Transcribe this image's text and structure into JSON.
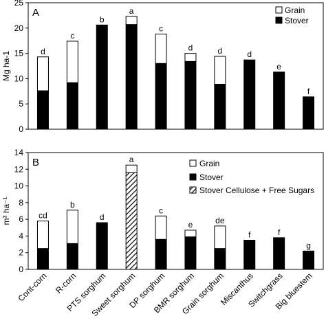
{
  "chart_data": [
    {
      "panel_label": "A",
      "type": "bar",
      "stacked": true,
      "categories": [
        "Cont-corn",
        "R-corn",
        "PTS sorghum",
        "Sweet sorghum",
        "DP sorghum",
        "BMR sorghum",
        "Grain sorghum",
        "Miscanthus",
        "Switchgrass",
        "Big bluestem"
      ],
      "series": [
        {
          "name": "Stover",
          "values": [
            7.6,
            9.2,
            20.6,
            20.7,
            13.0,
            13.4,
            8.9,
            13.7,
            11.3,
            6.4
          ],
          "color": "#000000",
          "pattern": "solid"
        },
        {
          "name": "Grain",
          "values": [
            6.7,
            8.2,
            0,
            1.6,
            5.8,
            1.6,
            5.5,
            0,
            0,
            0
          ],
          "color": "#ffffff",
          "pattern": "empty"
        }
      ],
      "letters": [
        "d",
        "c",
        "b",
        "a",
        "c",
        "d",
        "d",
        "d",
        "e",
        "f"
      ],
      "ylabel": "Mg ha-1",
      "ylim": [
        0,
        25
      ],
      "yticks": [
        0,
        5,
        10,
        15,
        20,
        25
      ],
      "legend_position": "top-right",
      "grid": false
    },
    {
      "panel_label": "B",
      "type": "bar",
      "stacked": true,
      "categories": [
        "Cont-corn",
        "R-corn",
        "PTS sorghum",
        "Sweet sorghum",
        "DP sorghum",
        "BMR sorghum",
        "Grain sorghum",
        "Miscanthus",
        "Switchgrass",
        "Big bluestem"
      ],
      "series": [
        {
          "name": "Stover",
          "values": [
            2.5,
            3.1,
            5.6,
            0,
            3.6,
            3.9,
            2.5,
            3.5,
            3.8,
            2.2
          ],
          "color": "#000000",
          "pattern": "solid"
        },
        {
          "name": "Stover Cellulose + Free Sugars",
          "values": [
            0,
            0,
            0,
            11.6,
            0,
            0,
            0,
            0,
            0,
            0
          ],
          "color": "#000000",
          "pattern": "hatch"
        },
        {
          "name": "Grain",
          "values": [
            3.3,
            4.0,
            0,
            0.9,
            2.8,
            0.8,
            2.7,
            0,
            0,
            0
          ],
          "color": "#ffffff",
          "pattern": "empty"
        }
      ],
      "letters": [
        "cd",
        "b",
        "d",
        "a",
        "c",
        "e",
        "de",
        "f",
        "f",
        "g"
      ],
      "ylabel": "m³ ha⁻¹",
      "ylim": [
        0,
        14
      ],
      "yticks": [
        0,
        2,
        4,
        6,
        8,
        10,
        12,
        14
      ],
      "legend_position": "top-right",
      "grid": false
    }
  ],
  "legend": {
    "panel_a": [
      "Grain",
      "Stover"
    ],
    "panel_b": [
      "Grain",
      "Stover",
      "Stover Cellulose + Free Sugars"
    ]
  }
}
